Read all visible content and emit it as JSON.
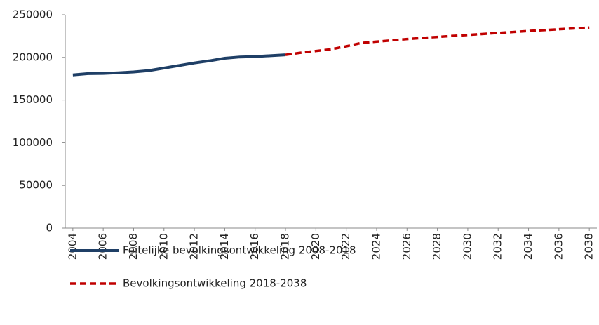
{
  "chart_data": {
    "type": "line",
    "x": [
      2004,
      2005,
      2006,
      2007,
      2008,
      2009,
      2010,
      2011,
      2012,
      2013,
      2014,
      2015,
      2016,
      2017,
      2018,
      2019,
      2020,
      2021,
      2022,
      2023,
      2024,
      2025,
      2026,
      2027,
      2028,
      2029,
      2030,
      2031,
      2032,
      2033,
      2034,
      2035,
      2036,
      2037,
      2038
    ],
    "xlim": [
      2003.5,
      2038.5
    ],
    "xticks": [
      2004,
      2006,
      2008,
      2010,
      2012,
      2014,
      2016,
      2018,
      2020,
      2022,
      2024,
      2026,
      2028,
      2030,
      2032,
      2034,
      2036,
      2038
    ],
    "ylim": [
      0,
      250000
    ],
    "yticks": [
      0,
      50000,
      100000,
      150000,
      200000,
      250000
    ],
    "grid": false,
    "legend": "bottom",
    "series": [
      {
        "name": "Feitelijke bevolkingsontwikkeling 2008-2018",
        "color": "#1f3f66",
        "dash": "solid",
        "values": [
          179500,
          181000,
          181200,
          182000,
          183000,
          184500,
          187500,
          190500,
          193500,
          196000,
          199000,
          200500,
          201000,
          202000,
          203000,
          null,
          null,
          null,
          null,
          null,
          null,
          null,
          null,
          null,
          null,
          null,
          null,
          null,
          null,
          null,
          null,
          null,
          null,
          null,
          null
        ]
      },
      {
        "name": "Bevolkingsontwikkeling 2018-2038",
        "color": "#c00000",
        "dash": "dashed",
        "values": [
          null,
          null,
          null,
          null,
          null,
          null,
          null,
          null,
          null,
          null,
          null,
          null,
          null,
          null,
          203000,
          205500,
          207500,
          209500,
          213000,
          217000,
          218500,
          220000,
          221500,
          222800,
          224000,
          225200,
          226300,
          227500,
          228700,
          229800,
          231000,
          232000,
          233000,
          234000,
          235000
        ]
      }
    ]
  }
}
